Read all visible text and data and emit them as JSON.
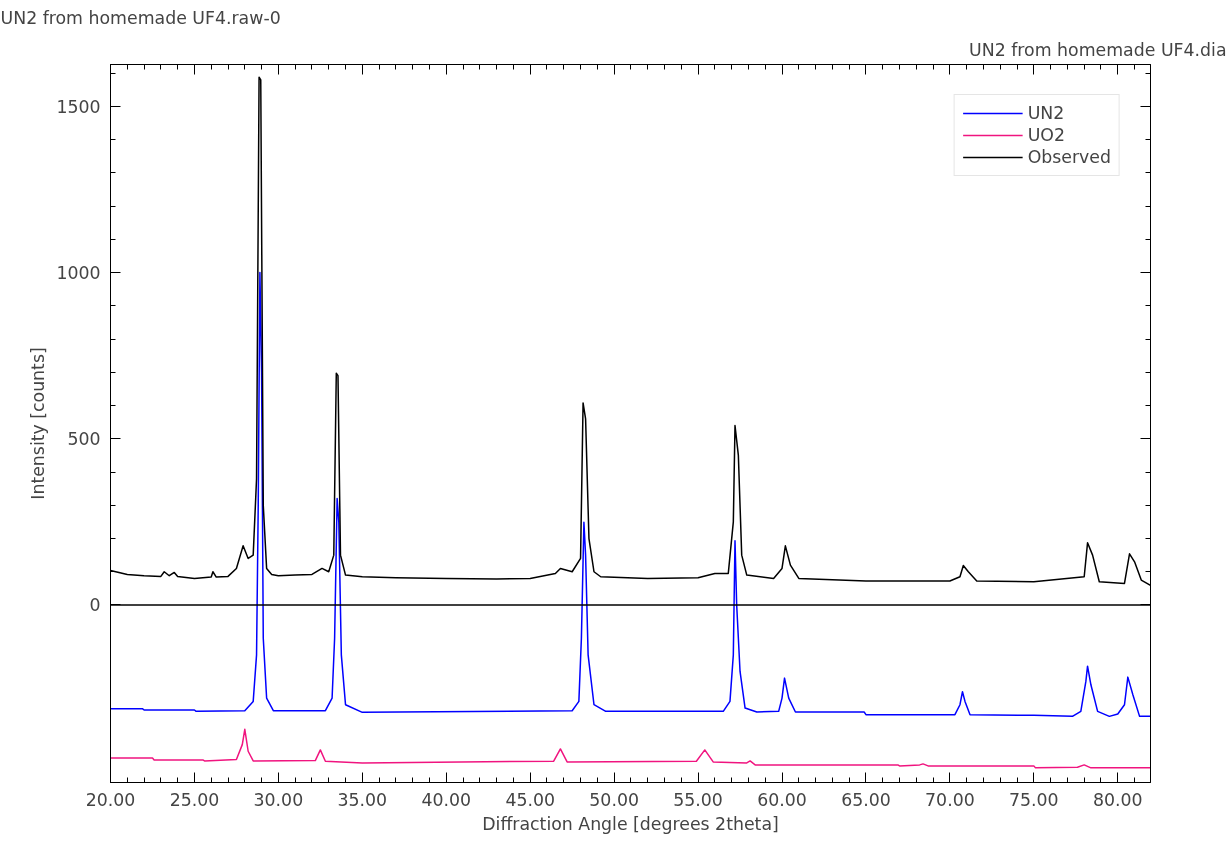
{
  "chart_data": {
    "type": "line",
    "title": "UN2 from homemade UF4.raw-0",
    "annotations": [
      "UN2 from homemade UF4.dia"
    ],
    "xlabel": "Diffraction Angle [degrees 2theta]",
    "ylabel": "Intensity [counts]",
    "xlim": [
      20,
      81.95
    ],
    "ylim": [
      -534,
      1626
    ],
    "xticks": [
      {
        "value": 20,
        "label": "20.00"
      },
      {
        "value": 25,
        "label": "25.00"
      },
      {
        "value": 30,
        "label": "30.00"
      },
      {
        "value": 35,
        "label": "35.00"
      },
      {
        "value": 40,
        "label": "40.00"
      },
      {
        "value": 45,
        "label": "45.00"
      },
      {
        "value": 50,
        "label": "50.00"
      },
      {
        "value": 55,
        "label": "55.00"
      },
      {
        "value": 60,
        "label": "60.00"
      },
      {
        "value": 65,
        "label": "65.00"
      },
      {
        "value": 70,
        "label": "70.00"
      },
      {
        "value": 75,
        "label": "75.00"
      },
      {
        "value": 80,
        "label": "80.00"
      }
    ],
    "yticks": [
      0,
      500,
      1000,
      1500
    ],
    "grid": false,
    "legend": "top right",
    "ref_lines": [
      {
        "axis": "y",
        "value": 0,
        "label": null,
        "color": "#000000"
      }
    ],
    "series": [
      {
        "name": "UN2",
        "color": "#0000ff",
        "x": [
          20,
          21.9,
          22.0,
          25.0,
          25.1,
          28.0,
          28.5,
          28.7,
          28.8,
          28.9,
          29.0,
          29.1,
          29.3,
          29.7,
          32.8,
          33.2,
          33.35,
          33.5,
          33.6,
          33.75,
          34.0,
          35.0,
          47.5,
          47.9,
          48.05,
          48.2,
          48.3,
          48.45,
          48.8,
          49.5,
          56.5,
          56.9,
          57.1,
          57.2,
          57.3,
          57.5,
          57.8,
          58.5,
          59.8,
          60.0,
          60.15,
          60.4,
          60.8,
          64.9,
          65.0,
          70.3,
          70.6,
          70.75,
          70.9,
          71.2,
          75.0,
          77.3,
          77.8,
          78.1,
          78.2,
          78.4,
          78.8,
          79.5,
          80.0,
          80.4,
          80.6,
          80.9,
          81.3,
          81.95
        ],
        "values": [
          -312,
          -312,
          -316,
          -316,
          -320,
          -318,
          -290,
          -150,
          300,
          1000,
          700,
          -100,
          -280,
          -318,
          -318,
          -280,
          -100,
          320,
          250,
          -150,
          -300,
          -323,
          -318,
          -290,
          -100,
          249,
          150,
          -150,
          -300,
          -320,
          -320,
          -290,
          -150,
          193,
          0,
          -200,
          -310,
          -322,
          -320,
          -280,
          -220,
          -280,
          -322,
          -322,
          -330,
          -330,
          -300,
          -261,
          -290,
          -330,
          -332,
          -335,
          -320,
          -230,
          -184,
          -240,
          -320,
          -335,
          -328,
          -300,
          -217,
          -270,
          -335,
          -335
        ]
      },
      {
        "name": "UO2",
        "color": "#f0147f",
        "x": [
          20,
          22.5,
          22.6,
          25.5,
          25.6,
          27.5,
          27.85,
          28.0,
          28.2,
          28.5,
          32.2,
          32.5,
          32.8,
          35.0,
          46.4,
          46.8,
          47.2,
          54.9,
          55.4,
          55.9,
          57.9,
          58.1,
          58.4,
          66.9,
          67.0,
          68.2,
          68.4,
          68.7,
          75.0,
          75.1,
          77.6,
          78.0,
          78.4,
          81.95
        ],
        "values": [
          -460,
          -460,
          -466,
          -466,
          -469,
          -465,
          -420,
          -374,
          -440,
          -469,
          -468,
          -436,
          -470,
          -475,
          -470,
          -433,
          -472,
          -470,
          -436,
          -472,
          -475,
          -469,
          -481,
          -481,
          -484,
          -481,
          -478,
          -484,
          -484,
          -490,
          -488,
          -481,
          -490,
          -490
        ]
      },
      {
        "name": "Observed",
        "color": "#000000",
        "x": [
          20.0,
          20.5,
          21.0,
          22.0,
          23.0,
          23.2,
          23.5,
          23.8,
          24.0,
          25.0,
          26.0,
          26.1,
          26.3,
          27.0,
          27.5,
          27.9,
          28.2,
          28.5,
          28.7,
          28.85,
          28.95,
          29.1,
          29.3,
          29.6,
          30.0,
          31.0,
          32.0,
          32.6,
          33.0,
          33.3,
          33.45,
          33.55,
          33.7,
          34.0,
          35.0,
          37.0,
          40.0,
          43.0,
          45.0,
          46.5,
          46.8,
          47.5,
          48.0,
          48.15,
          48.3,
          48.5,
          48.8,
          49.2,
          52.0,
          55.0,
          56.0,
          56.8,
          57.1,
          57.2,
          57.4,
          57.6,
          57.9,
          59.5,
          60.0,
          60.2,
          60.5,
          61.0,
          65.0,
          70.0,
          70.6,
          70.8,
          71.1,
          71.6,
          75.0,
          78.0,
          78.2,
          78.5,
          78.9,
          80.4,
          80.7,
          81.0,
          81.4,
          81.95
        ],
        "values": [
          104,
          98,
          92,
          88,
          86,
          100,
          88,
          98,
          86,
          80,
          84,
          100,
          84,
          86,
          110,
          178,
          140,
          150,
          380,
          1588,
          1580,
          300,
          110,
          92,
          88,
          90,
          92,
          110,
          100,
          150,
          697,
          690,
          150,
          90,
          85,
          82,
          80,
          78,
          80,
          95,
          110,
          100,
          140,
          608,
          560,
          200,
          100,
          85,
          80,
          82,
          95,
          95,
          250,
          540,
          450,
          150,
          90,
          80,
          110,
          178,
          120,
          80,
          72,
          72,
          85,
          119,
          100,
          72,
          70,
          85,
          187,
          150,
          70,
          65,
          154,
          130,
          75,
          59
        ]
      }
    ]
  }
}
